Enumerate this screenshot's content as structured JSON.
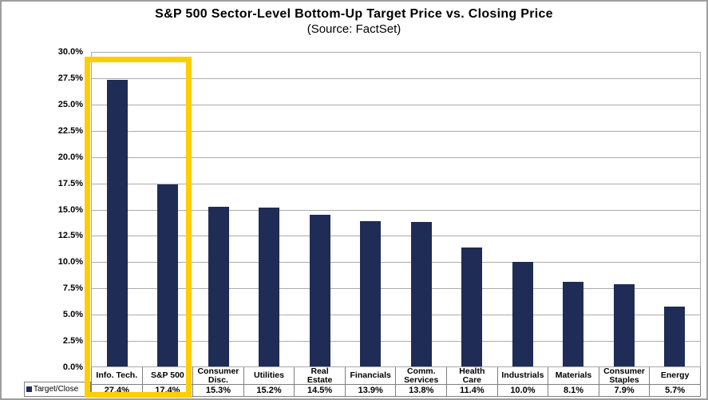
{
  "chart_data": {
    "type": "bar",
    "title": "S&P 500 Sector-Level Bottom-Up Target Price vs. Closing Price",
    "subtitle": "(Source: FactSet)",
    "series_name": "Target/Close",
    "categories": [
      "Info. Tech.",
      "S&P 500",
      "Consumer\nDisc.",
      "Utilities",
      "Real\nEstate",
      "Financials",
      "Comm.\nServices",
      "Health\nCare",
      "Industrials",
      "Materials",
      "Consumer\nStaples",
      "Energy"
    ],
    "values": [
      27.4,
      17.4,
      15.3,
      15.2,
      14.5,
      13.9,
      13.8,
      11.4,
      10.0,
      8.1,
      7.9,
      5.7
    ],
    "value_labels": [
      "27.4%",
      "17.4%",
      "15.3%",
      "15.2%",
      "14.5%",
      "13.9%",
      "13.8%",
      "11.4%",
      "10.0%",
      "8.1%",
      "7.9%",
      "5.7%"
    ],
    "ylim": [
      0,
      30
    ],
    "ytick_step": 2.5,
    "ytick_labels": [
      "30.0%",
      "27.5%",
      "25.0%",
      "22.5%",
      "20.0%",
      "17.5%",
      "15.0%",
      "12.5%",
      "10.0%",
      "7.5%",
      "5.0%",
      "2.5%",
      "0.0%"
    ],
    "grid": "horizontal",
    "legend_position": "bottom-left",
    "bar_color": "#1f2c55",
    "gridline_color": "#ababab",
    "highlight_box_color": "#ffce00",
    "highlighted_categories": [
      "Info. Tech.",
      "S&P 500"
    ]
  }
}
